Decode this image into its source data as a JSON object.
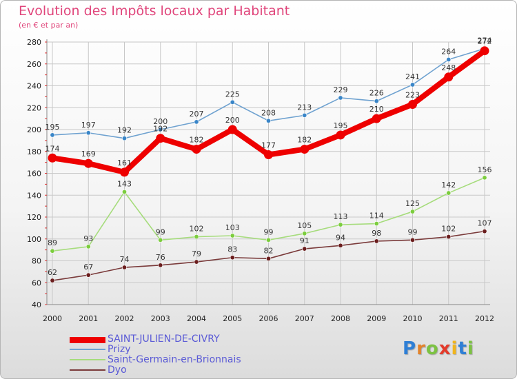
{
  "chart_data": {
    "type": "line",
    "title": "Evolution des Impôts locaux par Habitant",
    "subtitle": "(en € et par an)",
    "categories": [
      "2000",
      "2001",
      "2002",
      "2003",
      "2004",
      "2005",
      "2006",
      "2007",
      "2008",
      "2009",
      "2010",
      "2011",
      "2012"
    ],
    "yticks": [
      40,
      60,
      80,
      100,
      120,
      140,
      160,
      180,
      200,
      220,
      240,
      260,
      280
    ],
    "ylim": [
      40,
      280
    ],
    "grid": true,
    "series": [
      {
        "name": "Prizy",
        "color": "#6fa2d0",
        "marker": "#3a86c8",
        "values": [
          195,
          197,
          192,
          200,
          207,
          225,
          208,
          213,
          229,
          226,
          241,
          264,
          274
        ],
        "labels": [
          "195",
          "197",
          "192",
          "200",
          "207",
          "225",
          "208",
          "213",
          "229",
          "226",
          "241",
          "264",
          "274"
        ]
      },
      {
        "name": "Saint-Germain-en-Brionnais",
        "color": "#a6dc7c",
        "marker": "#7ccd3e",
        "values": [
          89,
          93,
          143,
          99,
          102,
          103,
          99,
          105,
          113,
          114,
          125,
          142,
          156
        ],
        "labels": [
          "89",
          "93",
          "143",
          "99",
          "102",
          "103",
          "99",
          "105",
          "113",
          "114",
          "125",
          "142",
          "156"
        ]
      },
      {
        "name": "Dyo",
        "color": "#7a3a3a",
        "marker": "#6b1e1e",
        "values": [
          62,
          67,
          74,
          76,
          79,
          83,
          82,
          91,
          94,
          98,
          99,
          102,
          107
        ],
        "labels": [
          "62",
          "67",
          "74",
          "76",
          "79",
          "83",
          "82",
          "91",
          "94",
          "98",
          "99",
          "102",
          "107"
        ]
      },
      {
        "name": "SAINT-JULIEN-DE-CIVRY",
        "color": "#ee0000",
        "marker": "#ee0000",
        "values": [
          174,
          169,
          161,
          192,
          182,
          200,
          177,
          182,
          195,
          210,
          223,
          248,
          272
        ],
        "labels": [
          "174",
          "169",
          "161",
          "192",
          "182",
          "200",
          "177",
          "182",
          "195",
          "210",
          "223",
          "248",
          "272"
        ]
      }
    ]
  },
  "legend": {
    "items": [
      {
        "name": "SAINT-JULIEN-DE-CIVRY",
        "color": "#ee0000"
      },
      {
        "name": "Prizy",
        "color": "#6fa2d0"
      },
      {
        "name": "Saint-Germain-en-Brionnais",
        "color": "#a6dc7c"
      },
      {
        "name": "Dyo",
        "color": "#7a3a3a"
      }
    ],
    "text_color": "#5a5ad6"
  },
  "logo": {
    "letters": [
      "P",
      "r",
      "o",
      "x",
      "i",
      "t",
      "i"
    ],
    "colors": [
      "#2e7fd6",
      "#e3832b",
      "#7cc242",
      "#e33b2b",
      "#f1b51c",
      "#2e7fd6",
      "#7cc242"
    ]
  }
}
